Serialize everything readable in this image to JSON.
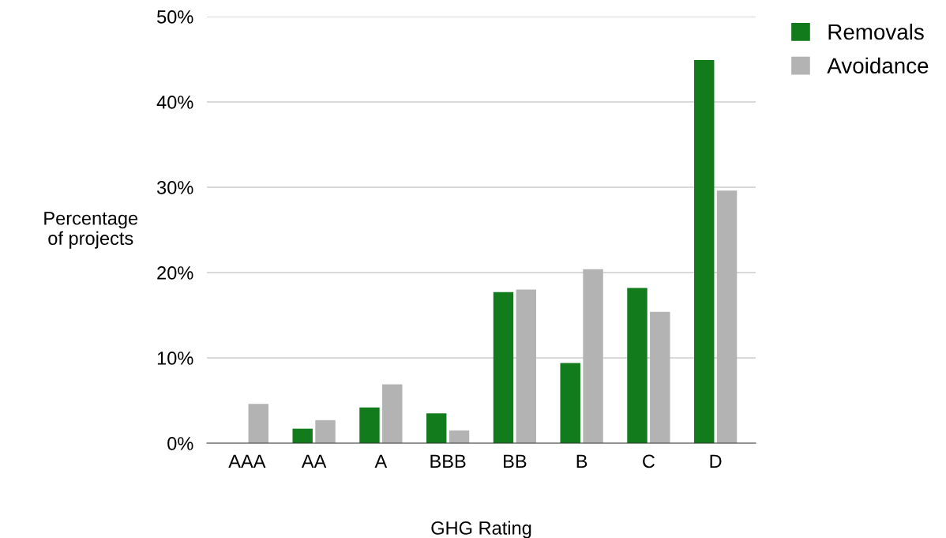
{
  "chart_data": {
    "type": "bar",
    "xlabel": "GHG Rating",
    "ylabel": "Percentage\nof projects",
    "categories": [
      "AAA",
      "AA",
      "A",
      "BBB",
      "BB",
      "B",
      "C",
      "D"
    ],
    "series": [
      {
        "name": "Removals",
        "color": "#127b1c",
        "values": [
          0,
          1.7,
          4.2,
          3.5,
          17.7,
          9.4,
          18.2,
          44.9
        ]
      },
      {
        "name": "Avoidance",
        "color": "#b3b3b3",
        "values": [
          4.6,
          2.7,
          6.9,
          1.5,
          18.0,
          20.4,
          15.4,
          29.6
        ]
      }
    ],
    "ylim": [
      0,
      50
    ],
    "yticks": [
      {
        "value": 0,
        "label": "0%"
      },
      {
        "value": 10,
        "label": "10%"
      },
      {
        "value": 20,
        "label": "20%"
      },
      {
        "value": 30,
        "label": "30%"
      },
      {
        "value": 40,
        "label": "40%"
      },
      {
        "value": 50,
        "label": "50%"
      }
    ],
    "grid": "y",
    "legend": "top right"
  }
}
